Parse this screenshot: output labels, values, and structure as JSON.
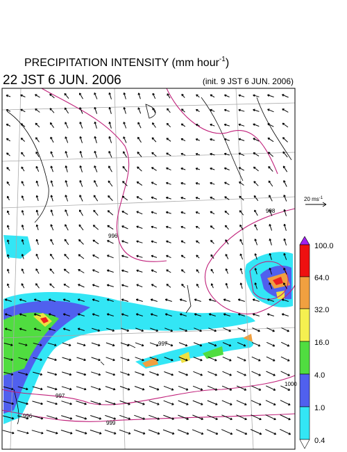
{
  "header": {
    "title": "PRECIPITATION INTENSITY (mm hour",
    "title_exponent": "-1",
    "title_close": ")",
    "valid_time": "22 JST 6 JUN. 2006",
    "init_time": "(init. 9 JST 6 JUN. 2006)"
  },
  "wind_scale": {
    "label": "20 ms",
    "exponent": "-1"
  },
  "colorbar": {
    "labels": [
      "100.0",
      "64.0",
      "32.0",
      "16.0",
      "4.0",
      "1.0",
      "0.4"
    ]
  },
  "isobars": {
    "labels": [
      "996",
      "998",
      "997",
      "996",
      "999",
      "1000",
      "997"
    ]
  }
}
